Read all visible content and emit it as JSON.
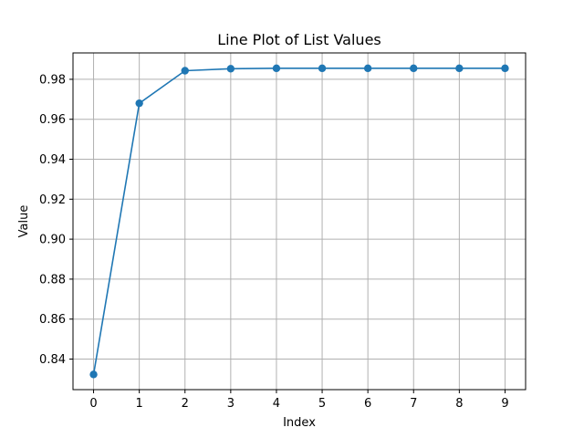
{
  "chart_data": {
    "type": "line",
    "title": "Line Plot of List Values",
    "xlabel": "Index",
    "ylabel": "Value",
    "x": [
      0,
      1,
      2,
      3,
      4,
      5,
      6,
      7,
      8,
      9
    ],
    "series": [
      {
        "values": [
          0.8323,
          0.968,
          0.9843,
          0.9853,
          0.9855,
          0.9855,
          0.9855,
          0.9855,
          0.9855,
          0.9855
        ],
        "color": "#1f77b4",
        "marker": "circle"
      }
    ],
    "xticks": [
      0,
      1,
      2,
      3,
      4,
      5,
      6,
      7,
      8,
      9
    ],
    "yticks": [
      0.84,
      0.86,
      0.88,
      0.9,
      0.92,
      0.94,
      0.96,
      0.98
    ],
    "ytick_labels": [
      "0.84",
      "0.86",
      "0.88",
      "0.90",
      "0.92",
      "0.94",
      "0.96",
      "0.98"
    ],
    "xlim": [
      -0.45,
      9.45
    ],
    "ylim": [
      0.8247,
      0.9932
    ],
    "grid": true,
    "grid_color": "#b0b0b0"
  }
}
